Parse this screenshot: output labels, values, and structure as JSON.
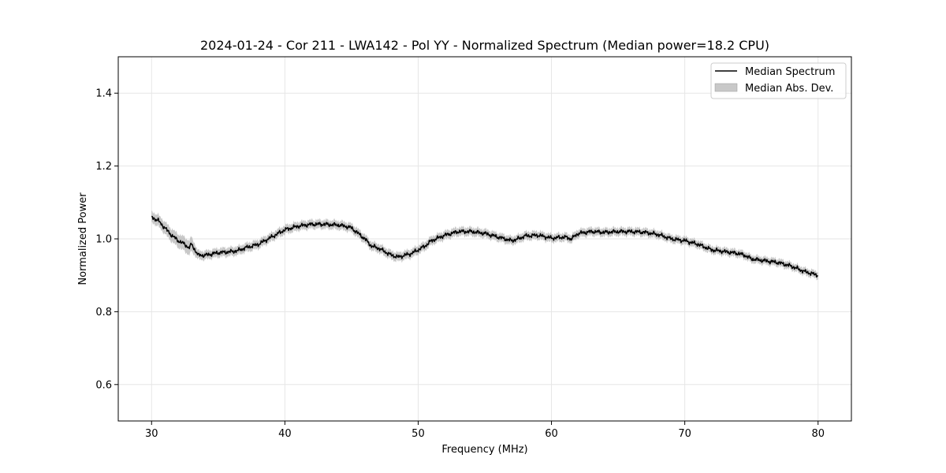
{
  "chart_data": {
    "type": "line",
    "title": "2024-01-24 - Cor 211 - LWA142 - Pol YY - Normalized Spectrum (Median power=18.2 CPU)",
    "xlabel": "Frequency (MHz)",
    "ylabel": "Normalized Power",
    "xlim": [
      27.5,
      82.5
    ],
    "ylim": [
      0.5,
      1.5
    ],
    "xticks": [
      30,
      40,
      50,
      60,
      70,
      80
    ],
    "yticks": [
      0.6,
      0.8,
      1.0,
      1.2,
      1.4
    ],
    "xtick_labels": [
      "30",
      "40",
      "50",
      "60",
      "70",
      "80"
    ],
    "ytick_labels": [
      "0.6",
      "0.8",
      "1.0",
      "1.2",
      "1.4"
    ],
    "grid": true,
    "legend_position": "top-right",
    "colors": {
      "line": "#000000",
      "band": "#b0b0b0",
      "grid": "#e6e6e6"
    },
    "series": [
      {
        "name": "Median Spectrum",
        "kind": "line",
        "x": [
          30,
          30.5,
          31,
          31.5,
          32,
          32.5,
          32.8,
          33,
          33.5,
          34,
          35,
          36,
          36.5,
          37,
          38,
          39,
          40,
          41,
          42,
          43,
          44,
          44.5,
          45,
          45.5,
          46,
          46.5,
          47,
          47.5,
          48,
          48.5,
          49,
          49.5,
          50,
          50.5,
          51,
          52,
          53,
          54,
          55,
          56,
          57,
          57.5,
          58,
          59,
          60,
          61,
          61.5,
          62,
          63,
          64,
          65,
          66,
          67,
          68,
          69,
          70,
          71,
          72,
          73,
          74,
          74.5,
          75,
          76,
          77,
          78,
          79,
          80
        ],
        "values": [
          1.06,
          1.05,
          1.03,
          1.01,
          0.995,
          0.985,
          0.975,
          0.985,
          0.955,
          0.955,
          0.962,
          0.965,
          0.968,
          0.975,
          0.985,
          1.005,
          1.025,
          1.035,
          1.04,
          1.04,
          1.038,
          1.035,
          1.03,
          1.015,
          1.0,
          0.98,
          0.975,
          0.965,
          0.955,
          0.95,
          0.955,
          0.96,
          0.97,
          0.98,
          0.995,
          1.01,
          1.02,
          1.02,
          1.015,
          1.005,
          0.995,
          1.0,
          1.008,
          1.01,
          1.002,
          1.005,
          1.0,
          1.015,
          1.02,
          1.018,
          1.02,
          1.02,
          1.018,
          1.012,
          1.0,
          0.995,
          0.985,
          0.97,
          0.965,
          0.96,
          0.955,
          0.945,
          0.94,
          0.935,
          0.925,
          0.91,
          0.9
        ]
      },
      {
        "name": "Median Abs. Dev.",
        "kind": "band",
        "x": [
          30,
          32.8,
          33,
          33.5,
          48,
          80
        ],
        "halfwidth": [
          0.015,
          0.02,
          0.02,
          0.012,
          0.012,
          0.01
        ]
      }
    ]
  }
}
